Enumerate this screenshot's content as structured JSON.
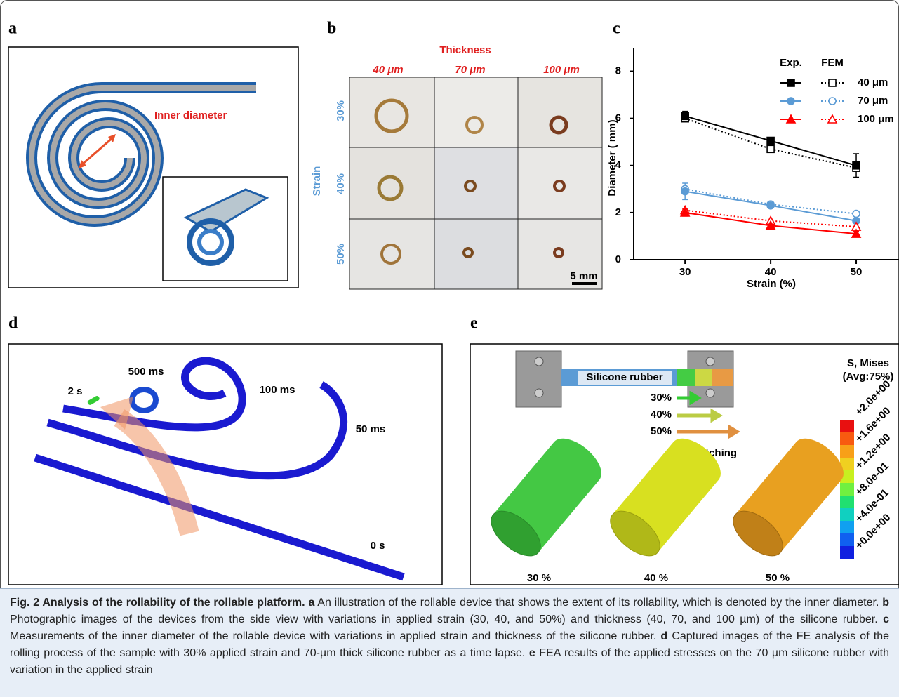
{
  "panel_labels": [
    "a",
    "b",
    "c",
    "d",
    "e"
  ],
  "panel_a": {
    "annotation": "Inner diameter"
  },
  "panel_b": {
    "title": "Thickness",
    "columns": [
      "40 μm",
      "70 μm",
      "100 μm"
    ],
    "axis_label": "Strain",
    "rows": [
      "30%",
      "40%",
      "50%"
    ],
    "scale_bar": "5 mm"
  },
  "chart_data": {
    "type": "line",
    "xlabel": "Strain (%)",
    "ylabel": "Diameter ( mm)",
    "x": [
      30,
      40,
      50
    ],
    "xlim": [
      24,
      55
    ],
    "ylim": [
      0,
      9
    ],
    "xticks": [
      30,
      40,
      50
    ],
    "yticks": [
      0,
      2,
      4,
      6,
      8
    ],
    "legend_headers": [
      "Exp.",
      "FEM"
    ],
    "series": [
      {
        "name": "40 μm",
        "color": "#000000",
        "marker": "square",
        "exp": [
          6.1,
          5.05,
          4.0
        ],
        "exp_errors": [
          0.2,
          0.12,
          0.5
        ],
        "fem": [
          6.0,
          4.7,
          3.9
        ]
      },
      {
        "name": "70 μm",
        "color": "#5b9bd5",
        "marker": "circle",
        "exp": [
          2.9,
          2.3,
          1.65
        ],
        "exp_errors": [
          0.35,
          0.1,
          0.1
        ],
        "fem": [
          3.0,
          2.35,
          1.95
        ]
      },
      {
        "name": "100 μm",
        "color": "#ff0000",
        "marker": "triangle",
        "exp": [
          2.0,
          1.45,
          1.1
        ],
        "exp_errors": [
          0.15,
          0.1,
          0.1
        ],
        "fem": [
          2.1,
          1.65,
          1.4
        ]
      }
    ]
  },
  "panel_d": {
    "labels": [
      "2 s",
      "500 ms",
      "100 ms",
      "50 ms",
      "0 s"
    ]
  },
  "panel_e": {
    "bar_label": "Silicone rubber",
    "strains": [
      "30%",
      "40%",
      "50%"
    ],
    "stretch_label": "Stretching",
    "legend_title": "S, Mises",
    "legend_subtitle": "(Avg:75%)",
    "colorbar_labels": [
      "+2.0e+00",
      "+1.6e+00",
      "+1.2e+00",
      "+8.0e-01",
      "+4.0e-01",
      "+0.0e+00"
    ],
    "cylinder_labels": [
      "30 %",
      "40 %",
      "50 %"
    ]
  },
  "caption": {
    "title": "Fig. 2 Analysis of the rollability of the rollable platform.",
    "parts": [
      {
        "label": "a",
        "text": "An illustration of the rollable device that shows the extent of its rollability, which is denoted by the inner diameter."
      },
      {
        "label": "b",
        "text": "Photographic images of the devices from the side view with variations in applied strain (30, 40, and 50%) and thickness (40, 70, and 100 µm) of the silicone rubber."
      },
      {
        "label": "c",
        "text": "Measurements of the inner diameter of the rollable device with variations in applied strain and thickness of the silicone rubber."
      },
      {
        "label": "d",
        "text": "Captured images of the FE analysis of the rolling process of the sample with 30% applied strain and 70-µm thick silicone rubber as a time lapse."
      },
      {
        "label": "e",
        "text": "FEA results of the applied stresses on the 70 µm silicone rubber with variation in the applied strain"
      }
    ]
  }
}
